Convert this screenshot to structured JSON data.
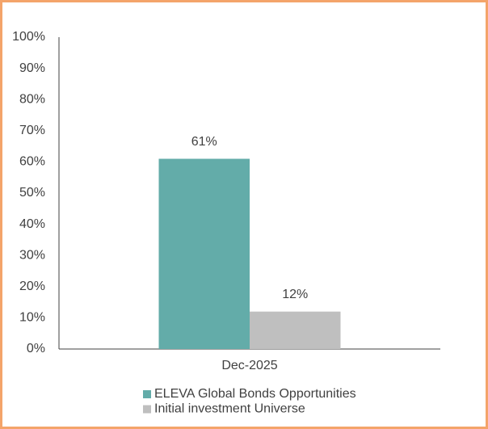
{
  "chart_data": {
    "type": "bar",
    "categories": [
      "Dec-2025"
    ],
    "series": [
      {
        "name": "ELEVA Global Bonds Opportunities",
        "color": "#63aca9",
        "values": [
          61
        ],
        "value_labels": [
          "61%"
        ]
      },
      {
        "name": "Initial investment Universe",
        "color": "#bfbfbf",
        "values": [
          12
        ],
        "value_labels": [
          "12%"
        ]
      }
    ],
    "ylim": [
      0,
      100
    ],
    "yticks": [
      {
        "value": 0,
        "label": "0%"
      },
      {
        "value": 10,
        "label": "10%"
      },
      {
        "value": 20,
        "label": "20%"
      },
      {
        "value": 30,
        "label": "30%"
      },
      {
        "value": 40,
        "label": "40%"
      },
      {
        "value": 50,
        "label": "50%"
      },
      {
        "value": 60,
        "label": "60%"
      },
      {
        "value": 70,
        "label": "70%"
      },
      {
        "value": 80,
        "label": "80%"
      },
      {
        "value": 90,
        "label": "90%"
      },
      {
        "value": 100,
        "label": "100%"
      }
    ],
    "grid": false
  }
}
